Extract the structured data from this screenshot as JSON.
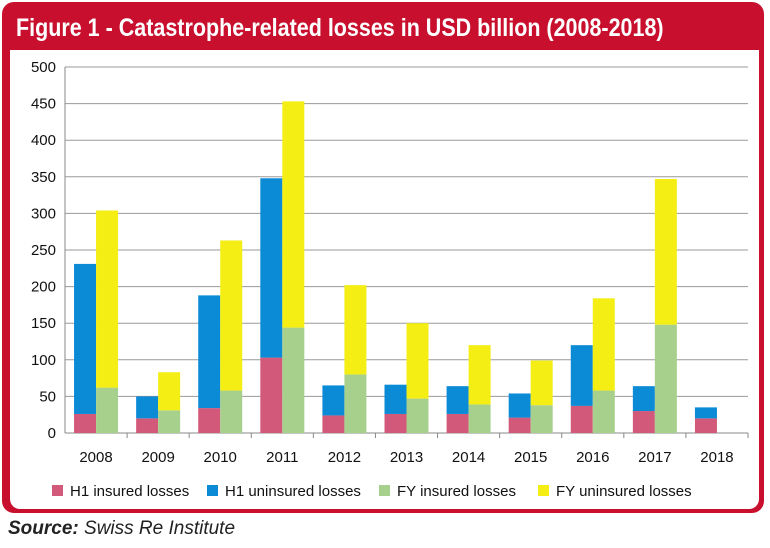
{
  "figure": {
    "title": "Figure 1 - Catastrophe-related losses in USD billion (2008-2018)",
    "source_label": "Source:",
    "source_text": "Swiss Re Institute"
  },
  "colors": {
    "frame": "#c8102e",
    "h1_insured": "#d2597a",
    "h1_uninsured": "#0b8ad6",
    "fy_insured": "#a8d08d",
    "fy_uninsured": "#f5ee14"
  },
  "chart_data": {
    "type": "bar",
    "stacked": true,
    "grouped": true,
    "title": "",
    "xlabel": "",
    "ylabel": "",
    "ylim": [
      0,
      500
    ],
    "yticks": [
      0,
      50,
      100,
      150,
      200,
      250,
      300,
      350,
      400,
      450,
      500
    ],
    "grid": true,
    "legend_position": "bottom",
    "categories": [
      "2008",
      "2009",
      "2010",
      "2011",
      "2012",
      "2013",
      "2014",
      "2015",
      "2016",
      "2017",
      "2018"
    ],
    "series": [
      {
        "name": "H1 insured losses",
        "group": "H1",
        "color": "#d2597a",
        "values": [
          26,
          20,
          34,
          103,
          24,
          26,
          26,
          21,
          37,
          30,
          20
        ]
      },
      {
        "name": "H1 uninsured losses",
        "group": "H1",
        "color": "#0b8ad6",
        "values": [
          205,
          30,
          154,
          245,
          41,
          40,
          38,
          33,
          83,
          34,
          15
        ]
      },
      {
        "name": "FY insured losses",
        "group": "FY",
        "color": "#a8d08d",
        "values": [
          62,
          31,
          58,
          144,
          80,
          47,
          39,
          38,
          58,
          148,
          null
        ]
      },
      {
        "name": "FY uninsured losses",
        "group": "FY",
        "color": "#f5ee14",
        "values": [
          242,
          52,
          205,
          309,
          122,
          103,
          81,
          61,
          126,
          199,
          null
        ]
      }
    ]
  }
}
